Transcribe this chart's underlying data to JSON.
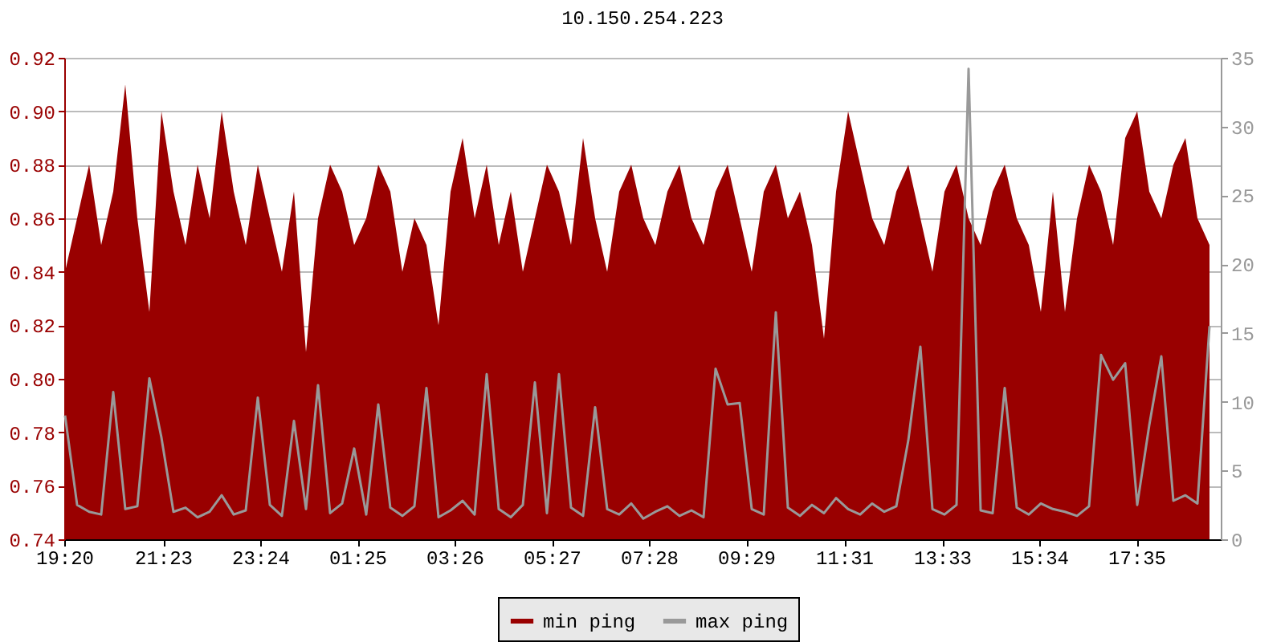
{
  "chart_data": {
    "type": "area",
    "title": "10.150.254.223",
    "x": [
      "--01-01T19:21",
      "--01-01T19:36",
      "--01-01T19:51",
      "--01-01T20:06",
      "--01-01T20:21",
      "--01-01T20:36",
      "--01-01T20:51",
      "--01-01T21:06",
      "--01-01T21:21",
      "--01-01T21:36",
      "--01-01T21:51",
      "--01-01T22:06",
      "--01-01T22:21",
      "--01-01T22:36",
      "--01-01T22:51",
      "--01-01T23:06",
      "--01-01T23:21",
      "--01-01T23:36",
      "--01-01T23:51",
      "--01-02T00:06",
      "--01-02T00:21",
      "--01-02T00:36",
      "--01-02T00:51",
      "--01-02T01:06",
      "--01-02T01:21",
      "--01-02T01:36",
      "--01-02T01:51",
      "--01-02T02:06",
      "--01-02T02:21",
      "--01-02T02:36",
      "--01-02T02:51",
      "--01-02T03:06",
      "--01-02T03:21",
      "--01-02T03:36",
      "--01-02T03:51",
      "--01-02T04:06",
      "--01-02T04:21",
      "--01-02T04:36",
      "--01-02T04:51",
      "--01-02T05:06",
      "--01-02T05:21",
      "--01-02T05:36",
      "--01-02T05:51",
      "--01-02T06:06",
      "--01-02T06:21",
      "--01-02T06:36",
      "--01-02T06:51",
      "--01-02T07:06",
      "--01-02T07:21",
      "--01-02T07:36",
      "--01-02T07:51",
      "--01-02T08:06",
      "--01-02T08:21",
      "--01-02T08:36",
      "--01-02T08:51",
      "--01-02T09:06",
      "--01-02T09:21",
      "--01-02T09:36",
      "--01-02T09:51",
      "--01-02T10:06",
      "--01-02T10:21",
      "--01-02T10:36",
      "--01-02T10:51",
      "--01-02T11:06",
      "--01-02T11:21",
      "--01-02T11:36",
      "--01-02T11:51",
      "--01-02T12:06",
      "--01-02T12:21",
      "--01-02T12:36",
      "--01-02T12:51",
      "--01-02T13:06",
      "--01-02T13:21",
      "--01-02T13:36",
      "--01-02T13:51",
      "--01-02T14:06",
      "--01-02T14:21",
      "--01-02T14:36",
      "--01-02T14:51",
      "--01-02T15:06",
      "--01-02T15:21",
      "--01-02T15:36",
      "--01-02T15:51",
      "--01-02T16:06",
      "--01-02T16:21",
      "--01-02T16:36",
      "--01-02T16:51",
      "--01-02T17:06",
      "--01-02T17:21",
      "--01-02T17:36",
      "--01-02T17:51",
      "--01-02T18:06",
      "--01-02T18:21",
      "--01-02T18:36",
      "--01-02T18:51",
      "--01-02T19:06"
    ],
    "series": [
      {
        "name": "min ping",
        "color": "#990000",
        "values": [
          0.84,
          0.86,
          0.88,
          0.85,
          0.87,
          0.91,
          0.86,
          0.825,
          0.9,
          0.87,
          0.85,
          0.88,
          0.86,
          0.9,
          0.87,
          0.85,
          0.88,
          0.86,
          0.84,
          0.87,
          0.81,
          0.86,
          0.88,
          0.87,
          0.85,
          0.86,
          0.88,
          0.87,
          0.84,
          0.86,
          0.85,
          0.82,
          0.87,
          0.89,
          0.86,
          0.88,
          0.85,
          0.87,
          0.84,
          0.86,
          0.88,
          0.87,
          0.85,
          0.89,
          0.86,
          0.84,
          0.87,
          0.88,
          0.86,
          0.85,
          0.87,
          0.88,
          0.86,
          0.85,
          0.87,
          0.88,
          0.86,
          0.84,
          0.87,
          0.88,
          0.86,
          0.87,
          0.85,
          0.815,
          0.87,
          0.9,
          0.88,
          0.86,
          0.85,
          0.87,
          0.88,
          0.86,
          0.84,
          0.87,
          0.88,
          0.86,
          0.85,
          0.87,
          0.88,
          0.86,
          0.85,
          0.825,
          0.87,
          0.825,
          0.86,
          0.88,
          0.87,
          0.85,
          0.89,
          0.9,
          0.87,
          0.86,
          0.88,
          0.89,
          0.86,
          0.85
        ]
      },
      {
        "name": "max ping",
        "color": "#999999",
        "type": "line",
        "axis": "y2",
        "values": [
          9,
          2.5,
          2,
          1.8,
          10.7,
          2.2,
          2.4,
          11.7,
          7.4,
          2,
          2.3,
          1.6,
          2,
          3.2,
          1.8,
          2.1,
          10.3,
          2.5,
          1.7,
          8.6,
          2.2,
          11.2,
          1.9,
          2.6,
          6.6,
          1.8,
          9.8,
          2.3,
          1.7,
          2.4,
          11,
          1.6,
          2.1,
          2.8,
          1.8,
          12,
          2.2,
          1.6,
          2.5,
          11.4,
          1.9,
          12,
          2.3,
          1.7,
          9.6,
          2.2,
          1.8,
          2.6,
          1.5,
          2,
          2.4,
          1.7,
          2.1,
          1.6,
          12.4,
          9.8,
          9.9,
          2.2,
          1.8,
          16.5,
          2.3,
          1.7,
          2.5,
          1.9,
          3,
          2.2,
          1.8,
          2.6,
          2,
          2.4,
          7.2,
          14,
          2.2,
          1.8,
          2.5,
          34.2,
          2.1,
          1.9,
          11,
          2.3,
          1.8,
          2.6,
          2.2,
          2,
          1.7,
          2.4,
          13.4,
          11.6,
          12.8,
          2.5,
          8.3,
          13.3,
          2.8,
          3.2,
          2.6,
          15.5
        ]
      }
    ],
    "xlim": [
      "--01-01T19:20",
      "--01-02T19:20"
    ],
    "xticks": [
      {
        "value": "--01-01T19:20",
        "label": "19:20"
      },
      {
        "value": "--01-01T21:23",
        "label": "21:23"
      },
      {
        "value": "--01-01T23:24",
        "label": "23:24"
      },
      {
        "value": "--01-02T01:25",
        "label": "01:25"
      },
      {
        "value": "--01-02T03:26",
        "label": "03:26"
      },
      {
        "value": "--01-02T05:27",
        "label": "05:27"
      },
      {
        "value": "--01-02T07:28",
        "label": "07:28"
      },
      {
        "value": "--01-02T09:29",
        "label": "09:29"
      },
      {
        "value": "--01-02T11:31",
        "label": "11:31"
      },
      {
        "value": "--01-02T13:33",
        "label": "13:33"
      },
      {
        "value": "--01-02T15:34",
        "label": "15:34"
      },
      {
        "value": "--01-02T17:35",
        "label": "17:35"
      }
    ],
    "ylim": [
      0.74,
      0.92
    ],
    "yticks": [
      {
        "value": 0.74,
        "label": "0.74"
      },
      {
        "value": 0.76,
        "label": "0.76"
      },
      {
        "value": 0.78,
        "label": "0.78"
      },
      {
        "value": 0.8,
        "label": "0.80"
      },
      {
        "value": 0.82,
        "label": "0.82"
      },
      {
        "value": 0.84,
        "label": "0.84"
      },
      {
        "value": 0.86,
        "label": "0.86"
      },
      {
        "value": 0.88,
        "label": "0.88"
      },
      {
        "value": 0.9,
        "label": "0.90"
      },
      {
        "value": 0.92,
        "label": "0.92"
      }
    ],
    "y2lim": [
      0,
      35
    ],
    "y2ticks": [
      0,
      5,
      10,
      15,
      20,
      25,
      30,
      35
    ],
    "grid": "y",
    "legend": "bottom"
  }
}
